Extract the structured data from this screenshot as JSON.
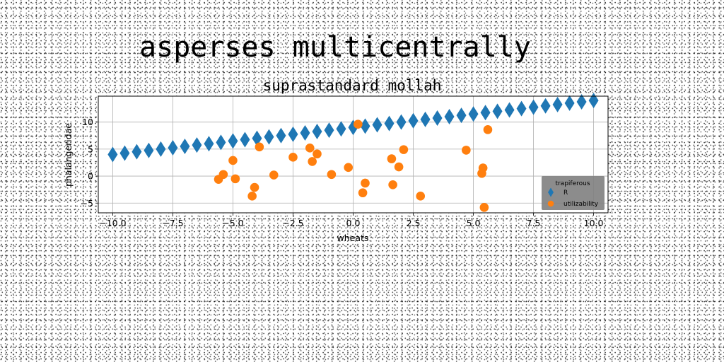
{
  "figure": {
    "suptitle": "asperses multicentrally"
  },
  "chart_data": {
    "type": "scatter",
    "title": "suprastandard mollah",
    "xlabel": "wheats",
    "ylabel": "phalangeridae",
    "xlim": [
      -10.6,
      10.6
    ],
    "ylim": [
      -6.8,
      14.8
    ],
    "xticks": [
      -10.0,
      -7.5,
      -5.0,
      -2.5,
      0.0,
      2.5,
      5.0,
      7.5,
      10.0
    ],
    "xtick_labels": [
      "−10.0",
      "−7.5",
      "−5.0",
      "−2.5",
      "0.0",
      "2.5",
      "5.0",
      "7.5",
      "10.0"
    ],
    "yticks": [
      -5,
      0,
      5,
      10
    ],
    "ytick_labels": [
      "−5",
      "0",
      "5",
      "10"
    ],
    "grid": true,
    "legend": {
      "title": "trapiferous",
      "placement": "lower-right",
      "background": "#808080"
    },
    "series": [
      {
        "name": "R",
        "marker": "diamond",
        "color": "#1f77b4",
        "x": [
          -10.0,
          -9.5,
          -9.0,
          -8.5,
          -8.0,
          -7.5,
          -7.0,
          -6.5,
          -6.0,
          -5.5,
          -5.0,
          -4.5,
          -4.0,
          -3.5,
          -3.0,
          -2.5,
          -2.0,
          -1.5,
          -1.0,
          -0.5,
          0.0,
          0.5,
          1.0,
          1.5,
          2.0,
          2.5,
          3.0,
          3.5,
          4.0,
          4.5,
          5.0,
          5.5,
          6.0,
          6.5,
          7.0,
          7.5,
          8.0,
          8.5,
          9.0,
          9.5,
          10.0
        ],
        "y": [
          4.0,
          4.25,
          4.5,
          4.75,
          5.0,
          5.25,
          5.5,
          5.75,
          6.0,
          6.25,
          6.5,
          6.75,
          7.0,
          7.25,
          7.5,
          7.75,
          8.0,
          8.25,
          8.5,
          8.75,
          9.0,
          9.25,
          9.5,
          9.75,
          10.0,
          10.25,
          10.5,
          10.75,
          11.0,
          11.25,
          11.5,
          11.75,
          12.0,
          12.25,
          12.5,
          12.75,
          13.0,
          13.25,
          13.5,
          13.75,
          14.0
        ]
      },
      {
        "name": "utilizability",
        "marker": "circle",
        "color": "#ff7f0e",
        "x": [
          -5.6,
          -5.4,
          -5.0,
          -4.9,
          -4.2,
          -4.1,
          -3.9,
          -3.3,
          -2.5,
          -1.8,
          -1.7,
          -1.5,
          -0.9,
          -0.2,
          0.2,
          0.4,
          0.5,
          1.6,
          1.65,
          1.9,
          2.1,
          2.8,
          4.7,
          5.35,
          5.4,
          5.45,
          5.6
        ],
        "y": [
          -0.6,
          0.3,
          2.9,
          -0.5,
          -3.7,
          -2.1,
          5.4,
          0.2,
          3.5,
          5.2,
          2.7,
          4.1,
          0.3,
          1.6,
          9.6,
          -3.1,
          -1.3,
          3.2,
          -1.6,
          1.7,
          4.9,
          -3.7,
          4.8,
          0.5,
          1.5,
          -5.8,
          8.6
        ]
      }
    ]
  }
}
